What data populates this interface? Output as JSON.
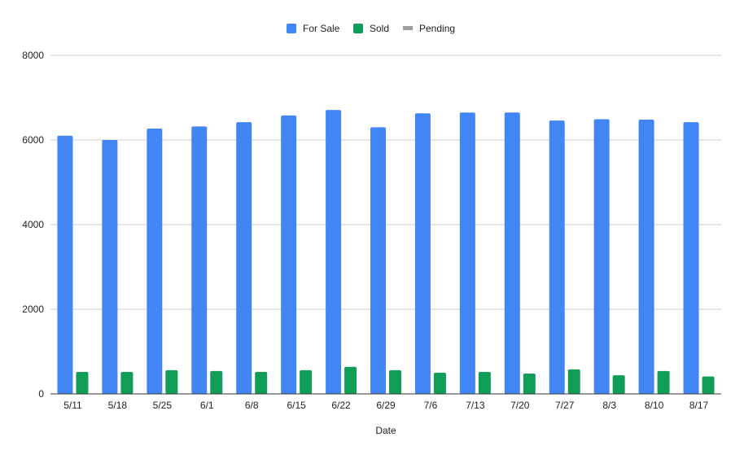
{
  "chart_data": {
    "type": "bar",
    "title": "",
    "xlabel": "Date",
    "ylabel": "",
    "ylim": [
      0,
      8000
    ],
    "yticks": [
      0,
      2000,
      4000,
      6000,
      8000
    ],
    "grid": true,
    "legend_position": "top-center",
    "categories": [
      "5/11",
      "5/18",
      "5/25",
      "6/1",
      "6/8",
      "6/15",
      "6/22",
      "6/29",
      "7/6",
      "7/13",
      "7/20",
      "7/27",
      "8/3",
      "8/10",
      "8/17"
    ],
    "series": [
      {
        "name": "For Sale",
        "color": "#4285f4",
        "values": [
          6100,
          6000,
          6270,
          6320,
          6420,
          6580,
          6710,
          6300,
          6630,
          6650,
          6650,
          6460,
          6490,
          6480,
          6420
        ]
      },
      {
        "name": "Sold",
        "color": "#0f9d58",
        "values": [
          520,
          520,
          560,
          540,
          520,
          560,
          640,
          560,
          500,
          520,
          480,
          580,
          440,
          540,
          410
        ]
      },
      {
        "name": "Pending",
        "color": "#9e9e9e",
        "values": [
          0,
          0,
          0,
          0,
          0,
          0,
          0,
          0,
          0,
          0,
          0,
          0,
          0,
          0,
          0
        ]
      }
    ]
  }
}
